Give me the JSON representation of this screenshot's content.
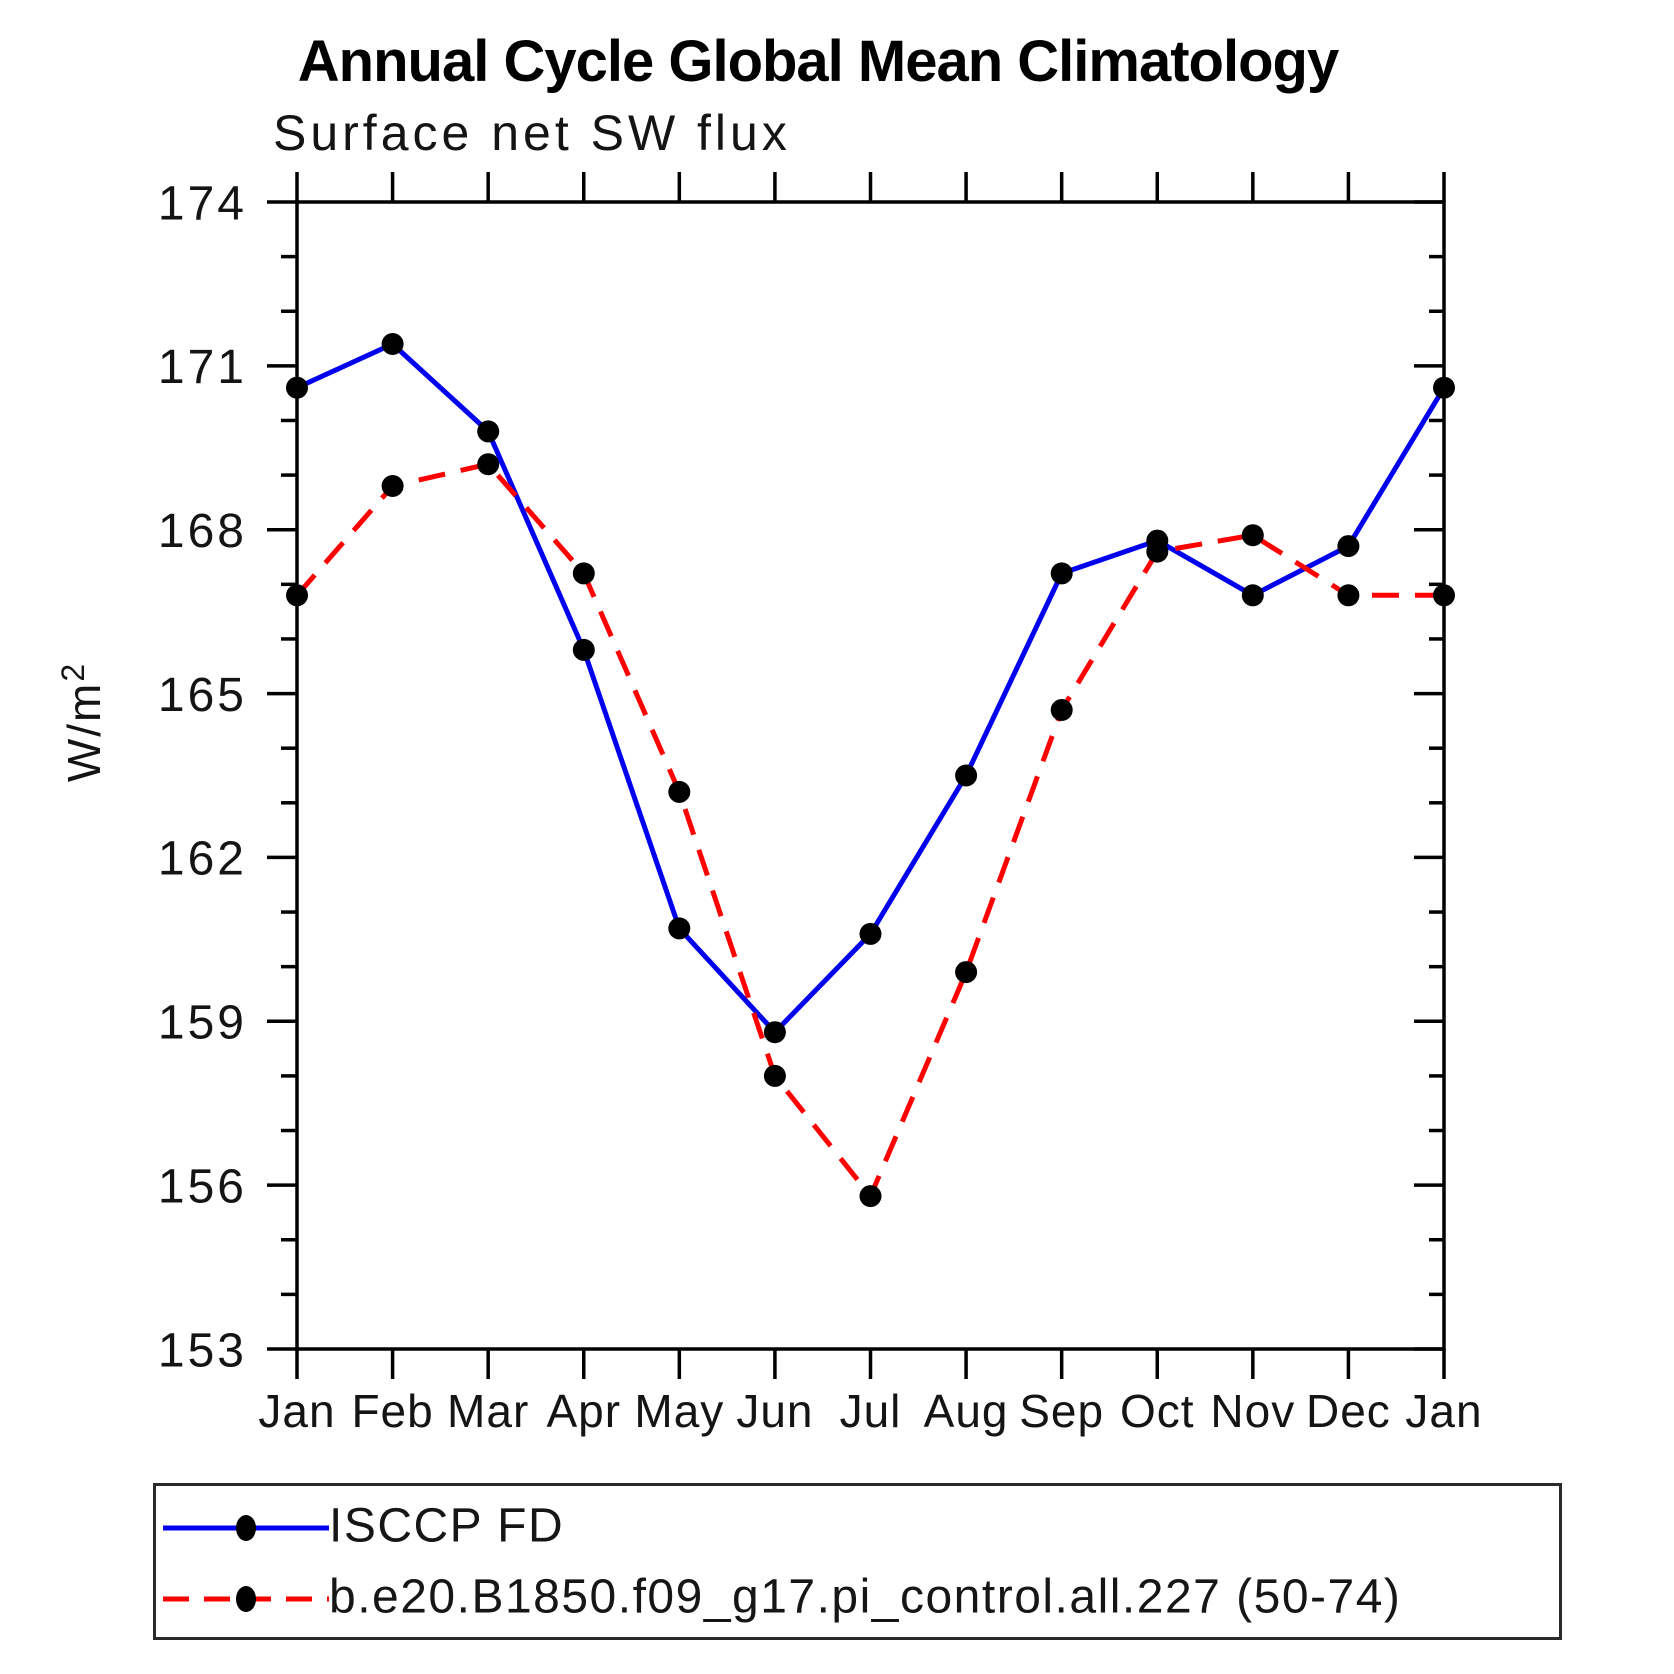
{
  "title": "Annual Cycle Global Mean Climatology",
  "subtitle": "Surface net SW flux",
  "ylabel": "W/m",
  "ylabel_exponent": "2",
  "colors": {
    "obs_line": "#0000ee",
    "model_line": "#ff0000",
    "marker": "#000000",
    "axis": "#000000",
    "text": "#141414"
  },
  "chart_data": {
    "type": "line",
    "title": "Annual Cycle Global Mean Climatology",
    "subtitle": "Surface net SW flux",
    "ylabel": "W/m^2",
    "categories": [
      "Jan",
      "Feb",
      "Mar",
      "Apr",
      "May",
      "Jun",
      "Jul",
      "Aug",
      "Sep",
      "Oct",
      "Nov",
      "Dec",
      "Jan"
    ],
    "series": [
      {
        "name": "ISCCP FD",
        "style": "solid",
        "color": "#0000ee",
        "marker": "black-dot",
        "values": [
          170.6,
          171.4,
          169.8,
          165.8,
          160.7,
          158.8,
          160.6,
          163.5,
          167.2,
          167.8,
          166.8,
          167.7,
          170.6
        ]
      },
      {
        "name": "b.e20.B1850.f09_g17.pi_control.all.227 (50-74)",
        "style": "dashed",
        "color": "#ff0000",
        "marker": "black-dot",
        "values": [
          166.8,
          168.8,
          169.2,
          167.2,
          163.2,
          158.0,
          155.8,
          159.9,
          164.7,
          167.6,
          167.9,
          166.8,
          166.8
        ]
      }
    ],
    "ylim": [
      153,
      174
    ],
    "yticks_major": [
      153,
      156,
      159,
      162,
      165,
      168,
      171,
      174
    ],
    "ytick_minor_step": 1,
    "grid": false,
    "legend_position": "bottom"
  }
}
